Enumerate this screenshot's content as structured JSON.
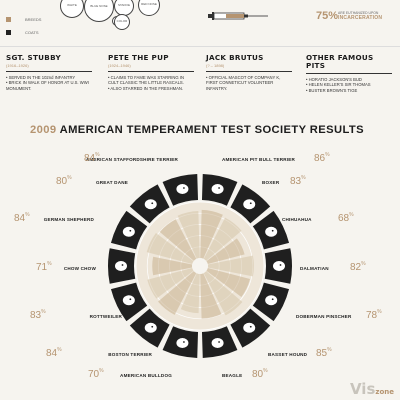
{
  "legend": {
    "items": [
      {
        "label": "BREEDS",
        "color": "#b59470"
      },
      {
        "label": "COATS",
        "color": "#222222"
      }
    ]
  },
  "bubbles": [
    "WHITE",
    "BLUE NOSE",
    "STAFFIE",
    "RED NOSE",
    "",
    "COLOR"
  ],
  "stat": {
    "value": "75%",
    "text": "ARE EUTHANIZED UPON",
    "emph": "INCARCERATION"
  },
  "famous": [
    {
      "name": "SGT. STUBBY",
      "years": "(1916–1926)",
      "bullets": [
        "SERVED IN THE 102nd INFANTRY",
        "BRICK IN WALK OF HONOR AT U.S. WWI MONUMENT."
      ]
    },
    {
      "name": "PETE THE PUP",
      "years": "(1924–1946)",
      "bullets": [
        "CLAIMS TO FAME WAS STARRING IN CULT CLASSIC THE LITTLE RASCALS.",
        "ALSO STARRED IN THE FRESHMAN."
      ]
    },
    {
      "name": "JACK BRUTUS",
      "years": "(? – 1898)",
      "bullets": [
        "OFFICIAL MASCOT OF COMPANY K, FIRST CONNETICUT VOLUNTEER INFANTRY."
      ]
    },
    {
      "name": "OTHER FAMOUS PITS",
      "years": "",
      "bullets": [
        "HORATIO JACKSON'S BUD",
        "HELEN KELLER'S SIR THOMAS",
        "BUSTER BROWN'S TIGE"
      ]
    }
  ],
  "chart_title_year": "2009",
  "chart_title": "AMERICAN TEMPERAMENT TEST SOCIETY RESULTS",
  "chart_data": {
    "type": "radial-bar",
    "categories": [
      "AMERICAN PIT BULL TERRIER",
      "BOXER",
      "CHIHUAHUA",
      "DALMATIAN",
      "DOBERMAN PINSCHER",
      "BASSET HOUND",
      "BEAGLE",
      "AMERICAN BULLDOG",
      "BOSTON TERRIER",
      "ROTTWEILER",
      "CHOW CHOW",
      "GERMAN SHEPHERD",
      "GREAT DANE",
      "AMERICAN STAFFORDSHIRE TERRIER"
    ],
    "values": [
      86,
      83,
      68,
      82,
      78,
      85,
      80,
      70,
      84,
      83,
      71,
      84,
      80,
      84
    ],
    "unit": "%"
  },
  "watermark": {
    "main": "Vis",
    "sub": "zone"
  }
}
